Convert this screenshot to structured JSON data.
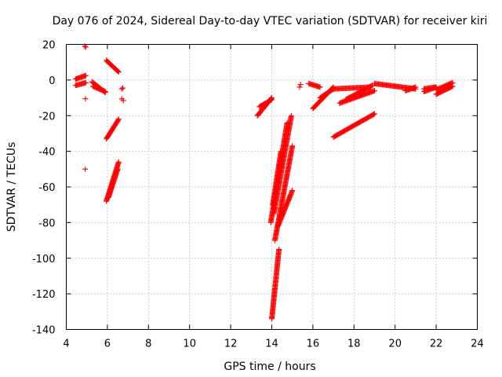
{
  "chart_data": {
    "type": "scatter",
    "title": "Day 076 of 2024, Sidereal Day-to-day VTEC variation (SDTVAR) for receiver kiri",
    "xlabel": "GPS time / hours",
    "ylabel": "SDTVAR / TECUs",
    "xlim": [
      4,
      24
    ],
    "ylim": [
      -140,
      20
    ],
    "xticks": [
      4,
      6,
      8,
      10,
      12,
      14,
      16,
      18,
      20,
      22,
      24
    ],
    "yticks": [
      20,
      0,
      -20,
      -40,
      -60,
      -80,
      -100,
      -120,
      -140
    ],
    "grid": true,
    "marker": "+",
    "color": "#ff0000",
    "points": [
      [
        4.9,
        19
      ],
      [
        4.95,
        18.5
      ],
      [
        4.93,
        -10.5
      ],
      [
        4.92,
        -50
      ],
      [
        6.7,
        -5
      ],
      [
        6.75,
        -4.5
      ],
      [
        6.7,
        -10.5
      ],
      [
        6.78,
        -11.5
      ],
      [
        15.35,
        -4
      ],
      [
        15.4,
        -2.5
      ]
    ],
    "segments": [
      {
        "x": [
          4.45,
          4.95
        ],
        "y": [
          -3.0,
          -1.5
        ]
      },
      {
        "x": [
          4.45,
          4.95
        ],
        "y": [
          0.5,
          2.5
        ]
      },
      {
        "x": [
          5.25,
          5.9
        ],
        "y": [
          -1.0,
          -7.0
        ]
      },
      {
        "x": [
          5.3,
          5.9
        ],
        "y": [
          -3.5,
          -6.5
        ]
      },
      {
        "x": [
          5.95,
          6.55
        ],
        "y": [
          11.0,
          4.5
        ]
      },
      {
        "x": [
          5.95,
          6.55
        ],
        "y": [
          -33.0,
          -22.0
        ]
      },
      {
        "x": [
          5.95,
          6.55
        ],
        "y": [
          -68.0,
          -46.0
        ]
      },
      {
        "x": [
          6.05,
          6.5
        ],
        "y": [
          -66.0,
          -50.0
        ]
      },
      {
        "x": [
          13.3,
          14.0
        ],
        "y": [
          -20.0,
          -10.0
        ]
      },
      {
        "x": [
          13.4,
          14.0
        ],
        "y": [
          -15.0,
          -11.0
        ]
      },
      {
        "x": [
          13.95,
          14.75
        ],
        "y": [
          -80.0,
          -24.0
        ]
      },
      {
        "x": [
          14.1,
          14.95
        ],
        "y": [
          -75.0,
          -20.0
        ]
      },
      {
        "x": [
          14.05,
          14.45
        ],
        "y": [
          -70.0,
          -40.0
        ]
      },
      {
        "x": [
          14.15,
          15.0
        ],
        "y": [
          -90.0,
          -37.0
        ]
      },
      {
        "x": [
          14.3,
          15.0
        ],
        "y": [
          -82.0,
          -62.0
        ]
      },
      {
        "x": [
          14.0,
          14.35
        ],
        "y": [
          -134.0,
          -95.0
        ]
      },
      {
        "x": [
          15.8,
          16.35
        ],
        "y": [
          -2.0,
          -4.0
        ]
      },
      {
        "x": [
          16.0,
          17.0
        ],
        "y": [
          -16.0,
          -4.0
        ]
      },
      {
        "x": [
          16.35,
          17.0
        ],
        "y": [
          -10.0,
          -5.0
        ]
      },
      {
        "x": [
          17.0,
          18.8
        ],
        "y": [
          -5.0,
          -4.0
        ]
      },
      {
        "x": [
          17.3,
          19.0
        ],
        "y": [
          -13.0,
          -6.0
        ]
      },
      {
        "x": [
          17.6,
          18.9
        ],
        "y": [
          -11.0,
          -3.0
        ]
      },
      {
        "x": [
          17.0,
          19.0
        ],
        "y": [
          -32.0,
          -19.0
        ]
      },
      {
        "x": [
          19.0,
          20.0
        ],
        "y": [
          -2.0,
          -3.5
        ]
      },
      {
        "x": [
          20.0,
          21.0
        ],
        "y": [
          -3.5,
          -5.0
        ]
      },
      {
        "x": [
          20.5,
          21.0
        ],
        "y": [
          -6.0,
          -4.0
        ]
      },
      {
        "x": [
          21.4,
          22.0
        ],
        "y": [
          -5.0,
          -4.0
        ]
      },
      {
        "x": [
          21.4,
          22.0
        ],
        "y": [
          -6.5,
          -4.0
        ]
      },
      {
        "x": [
          22.0,
          22.8
        ],
        "y": [
          -8.0,
          -3.5
        ]
      },
      {
        "x": [
          22.0,
          22.8
        ],
        "y": [
          -5.5,
          -1.5
        ]
      }
    ]
  }
}
